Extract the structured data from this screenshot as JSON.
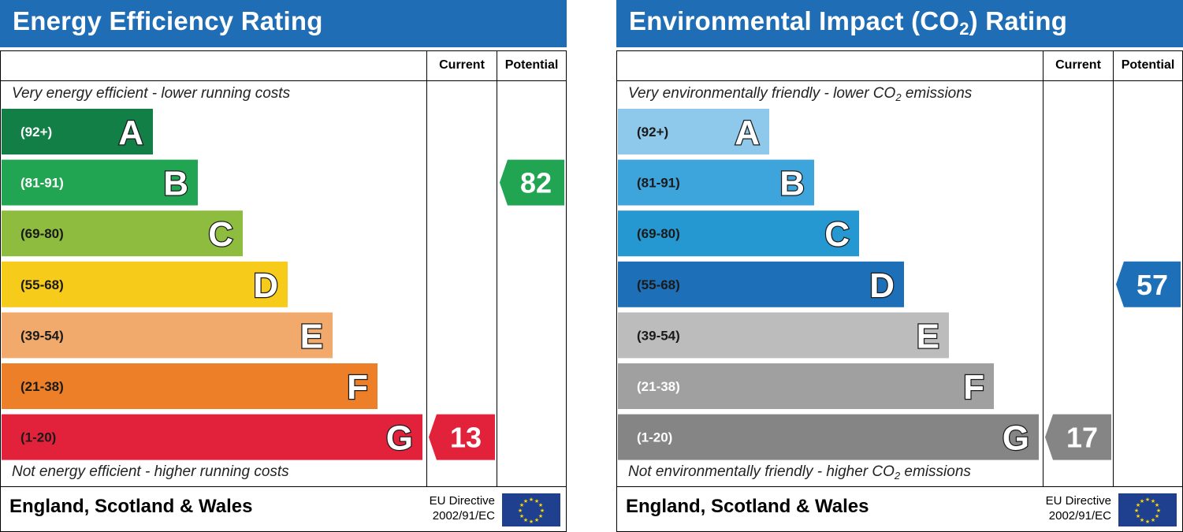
{
  "panels": [
    {
      "id": "ee",
      "title": "Energy Efficiency Rating",
      "col_current": "Current",
      "col_potential": "Potential",
      "top_text": "Very energy efficient - lower running costs",
      "bottom_text": "Not energy efficient - higher running costs",
      "footer_country": "England, Scotland & Wales",
      "eu_line1": "EU Directive",
      "eu_line2": "2002/91/EC"
    },
    {
      "id": "ei",
      "title_main": "Environmental Impact (CO",
      "title_sub": "2",
      "title_end": ") Rating",
      "col_current": "Current",
      "col_potential": "Potential",
      "top_text_main": "Very environmentally friendly - lower CO",
      "top_text_sub": "2",
      "top_text_end": " emissions",
      "bottom_text_main": "Not environmentally friendly - higher CO",
      "bottom_text_sub": "2",
      "bottom_text_end": " emissions",
      "footer_country": "England, Scotland & Wales",
      "eu_line1": "EU Directive",
      "eu_line2": "2002/91/EC"
    }
  ],
  "chart_data": [
    {
      "type": "bar",
      "title": "Energy Efficiency Rating",
      "categories": [
        "A",
        "B",
        "C",
        "D",
        "E",
        "F",
        "G"
      ],
      "ranges": [
        "(92+)",
        "(81-91)",
        "(69-80)",
        "(55-68)",
        "(39-54)",
        "(21-38)",
        "(1-20)"
      ],
      "colors": [
        "#127f46",
        "#22a553",
        "#8dbc3f",
        "#f6cb1a",
        "#f2a96c",
        "#ec7f27",
        "#e2223b"
      ],
      "range_text_colors": [
        "#ffffff",
        "#ffffff",
        "#1a1a1a",
        "#1a1a1a",
        "#1a1a1a",
        "#1a1a1a",
        "#1a1a1a"
      ],
      "series": [
        {
          "name": "Current",
          "value": 13,
          "band": "G",
          "color": "#e2223b"
        },
        {
          "name": "Potential",
          "value": 82,
          "band": "B",
          "color": "#22a553"
        }
      ]
    },
    {
      "type": "bar",
      "title": "Environmental Impact (CO2) Rating",
      "categories": [
        "A",
        "B",
        "C",
        "D",
        "E",
        "F",
        "G"
      ],
      "ranges": [
        "(92+)",
        "(81-91)",
        "(69-80)",
        "(55-68)",
        "(39-54)",
        "(21-38)",
        "(1-20)"
      ],
      "colors": [
        "#8ec8ea",
        "#3ea4dc",
        "#2598d2",
        "#1d70b7",
        "#bcbcbc",
        "#a0a0a0",
        "#858585"
      ],
      "range_text_colors": [
        "#1a1a1a",
        "#1a1a1a",
        "#1a1a1a",
        "#1a1a1a",
        "#1a1a1a",
        "#ffffff",
        "#ffffff"
      ],
      "series": [
        {
          "name": "Current",
          "value": 17,
          "band": "G",
          "color": "#858585"
        },
        {
          "name": "Potential",
          "value": 57,
          "band": "D",
          "color": "#1d70b7"
        }
      ]
    }
  ]
}
